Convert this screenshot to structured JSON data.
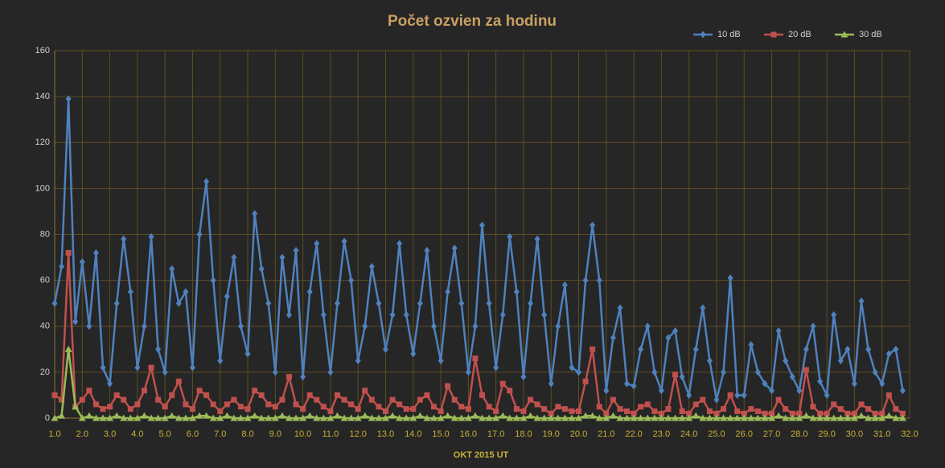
{
  "chart_data": {
    "type": "line",
    "title": "Počet ozvien za hodinu",
    "xlabel": "OKT 2015 UT",
    "x": [
      1,
      1.25,
      1.5,
      1.75,
      2,
      2.25,
      2.5,
      2.75,
      3,
      3.25,
      3.5,
      3.75,
      4,
      4.25,
      4.5,
      4.75,
      5,
      5.25,
      5.5,
      5.75,
      6,
      6.25,
      6.5,
      6.75,
      7,
      7.25,
      7.5,
      7.75,
      8,
      8.25,
      8.5,
      8.75,
      9,
      9.25,
      9.5,
      9.75,
      10,
      10.25,
      10.5,
      10.75,
      11,
      11.25,
      11.5,
      11.75,
      12,
      12.25,
      12.5,
      12.75,
      13,
      13.25,
      13.5,
      13.75,
      14,
      14.25,
      14.5,
      14.75,
      15,
      15.25,
      15.5,
      15.75,
      16,
      16.25,
      16.5,
      16.75,
      17,
      17.25,
      17.5,
      17.75,
      18,
      18.25,
      18.5,
      18.75,
      19,
      19.25,
      19.5,
      19.75,
      20,
      20.25,
      20.5,
      20.75,
      21,
      21.25,
      21.5,
      21.75,
      22,
      22.25,
      22.5,
      22.75,
      23,
      23.25,
      23.5,
      23.75,
      24,
      24.25,
      24.5,
      24.75,
      25,
      25.25,
      25.5,
      25.75,
      26,
      26.25,
      26.5,
      26.75,
      27,
      27.25,
      27.5,
      27.75,
      28,
      28.25,
      28.5,
      28.75,
      29,
      29.25,
      29.5,
      29.75,
      30,
      30.25,
      30.5,
      30.75,
      31,
      31.25,
      31.5,
      31.75
    ],
    "series": [
      {
        "name": "10 dB",
        "color": "#4f81bd",
        "marker": "diamond",
        "values": [
          50,
          66,
          139,
          42,
          68,
          40,
          72,
          22,
          15,
          50,
          78,
          55,
          22,
          40,
          79,
          30,
          20,
          65,
          50,
          55,
          22,
          80,
          103,
          60,
          25,
          53,
          70,
          40,
          28,
          89,
          65,
          50,
          20,
          70,
          45,
          73,
          18,
          55,
          76,
          45,
          20,
          50,
          77,
          60,
          25,
          40,
          66,
          50,
          30,
          45,
          76,
          45,
          28,
          50,
          73,
          40,
          25,
          55,
          74,
          50,
          20,
          40,
          84,
          50,
          22,
          45,
          79,
          55,
          18,
          50,
          78,
          45,
          15,
          40,
          58,
          22,
          20,
          60,
          84,
          60,
          12,
          35,
          48,
          15,
          14,
          30,
          40,
          20,
          12,
          35,
          38,
          18,
          10,
          30,
          48,
          25,
          8,
          20,
          61,
          10,
          10,
          32,
          20,
          15,
          12,
          38,
          25,
          18,
          12,
          30,
          40,
          16,
          10,
          45,
          25,
          30,
          15,
          51,
          30,
          20,
          15,
          28,
          30,
          12
        ]
      },
      {
        "name": "20 dB",
        "color": "#c0504d",
        "marker": "square",
        "values": [
          10,
          8,
          72,
          5,
          8,
          12,
          6,
          4,
          5,
          10,
          8,
          4,
          6,
          12,
          22,
          8,
          5,
          10,
          16,
          6,
          4,
          12,
          10,
          6,
          3,
          6,
          8,
          5,
          4,
          12,
          10,
          6,
          5,
          8,
          18,
          6,
          4,
          10,
          8,
          5,
          3,
          10,
          8,
          6,
          4,
          12,
          8,
          5,
          3,
          8,
          6,
          4,
          4,
          8,
          10,
          5,
          3,
          14,
          8,
          5,
          4,
          26,
          10,
          5,
          3,
          15,
          12,
          4,
          3,
          8,
          6,
          4,
          2,
          5,
          4,
          3,
          3,
          16,
          30,
          5,
          2,
          8,
          4,
          3,
          2,
          5,
          6,
          3,
          2,
          4,
          19,
          3,
          2,
          6,
          8,
          3,
          2,
          4,
          10,
          3,
          2,
          4,
          3,
          2,
          2,
          8,
          4,
          2,
          2,
          21,
          5,
          2,
          2,
          6,
          4,
          2,
          2,
          6,
          4,
          2,
          2,
          10,
          4,
          2
        ]
      },
      {
        "name": "30 dB",
        "color": "#9bbb59",
        "marker": "triangle",
        "values": [
          0,
          1,
          30,
          5,
          0,
          1,
          0,
          0,
          0,
          1,
          0,
          0,
          0,
          1,
          0,
          0,
          0,
          1,
          0,
          0,
          0,
          1,
          1,
          0,
          0,
          1,
          0,
          0,
          0,
          1,
          0,
          0,
          0,
          1,
          0,
          0,
          0,
          1,
          0,
          0,
          0,
          1,
          0,
          0,
          0,
          1,
          0,
          0,
          0,
          1,
          0,
          0,
          0,
          1,
          0,
          0,
          0,
          1,
          0,
          0,
          0,
          1,
          0,
          0,
          0,
          1,
          0,
          0,
          0,
          1,
          0,
          0,
          0,
          0,
          0,
          0,
          0,
          1,
          1,
          0,
          0,
          1,
          0,
          0,
          0,
          0,
          0,
          0,
          0,
          0,
          0,
          0,
          0,
          1,
          0,
          0,
          0,
          0,
          0,
          0,
          0,
          0,
          0,
          0,
          0,
          1,
          0,
          0,
          0,
          1,
          0,
          0,
          0,
          0,
          0,
          0,
          0,
          1,
          0,
          0,
          0,
          1,
          0,
          0
        ]
      }
    ],
    "xlim": [
      1,
      32
    ],
    "xticks": [
      {
        "value": 1,
        "label": "1.0"
      },
      {
        "value": 2,
        "label": "2.0"
      },
      {
        "value": 3,
        "label": "3.0"
      },
      {
        "value": 4,
        "label": "4.0"
      },
      {
        "value": 5,
        "label": "5.0"
      },
      {
        "value": 6,
        "label": "6.0"
      },
      {
        "value": 7,
        "label": "7.0"
      },
      {
        "value": 8,
        "label": "8.0"
      },
      {
        "value": 9,
        "label": "9.0"
      },
      {
        "value": 10,
        "label": "10.0"
      },
      {
        "value": 11,
        "label": "11.0"
      },
      {
        "value": 12,
        "label": "12.0"
      },
      {
        "value": 13,
        "label": "13.0"
      },
      {
        "value": 14,
        "label": "14.0"
      },
      {
        "value": 15,
        "label": "15.0"
      },
      {
        "value": 16,
        "label": "16.0"
      },
      {
        "value": 17,
        "label": "17.0"
      },
      {
        "value": 18,
        "label": "18.0"
      },
      {
        "value": 19,
        "label": "19.0"
      },
      {
        "value": 20,
        "label": "20.0"
      },
      {
        "value": 21,
        "label": "21.0"
      },
      {
        "value": 22,
        "label": "22.0"
      },
      {
        "value": 23,
        "label": "23.0"
      },
      {
        "value": 24,
        "label": "24.0"
      },
      {
        "value": 25,
        "label": "25.0"
      },
      {
        "value": 26,
        "label": "26.0"
      },
      {
        "value": 27,
        "label": "27.0"
      },
      {
        "value": 28,
        "label": "28.0"
      },
      {
        "value": 29,
        "label": "29.0"
      },
      {
        "value": 30,
        "label": "30.0"
      },
      {
        "value": 31,
        "label": "31.0"
      },
      {
        "value": 32,
        "label": "32.0"
      }
    ],
    "ylim": [
      0,
      160
    ],
    "yticks": [
      0,
      20,
      40,
      60,
      80,
      100,
      120,
      140,
      160
    ],
    "grid": true,
    "legend": "top-right"
  }
}
